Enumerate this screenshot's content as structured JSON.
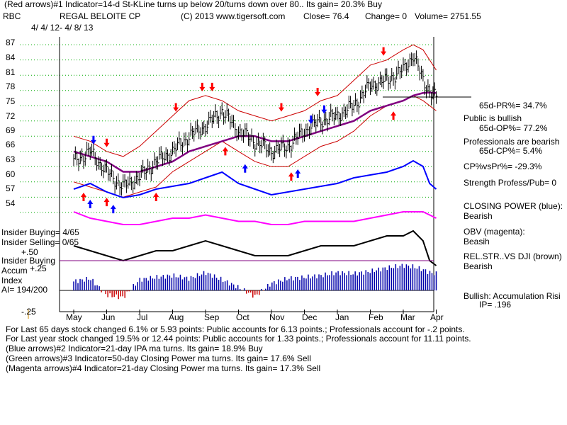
{
  "header": {
    "line1": "(Red arrows)#1 Indicator=14-d St-KLine turns up below 20/turns down over 80.. Its gain= 20.3% Buy",
    "ticker": "RBC",
    "company": "REGAL BELOITE CP",
    "copyright": "(C) 2013 www.tigersoft.com",
    "close": "Close=  76.4",
    "change": "Change= 0",
    "volume": "Volume= 2751.55",
    "date_range": "4/ 4/ 12-  4/ 8/ 13"
  },
  "left_labels": {
    "insider_buying": "Insider Buying= 4/65",
    "insider_selling": "Insider Selling= 0/65",
    "plus50": "+.50",
    "insider_buying2": "Insider Buying",
    "plus25": "+.25",
    "accum": "Accum",
    "index": "Index",
    "ai": "AI= 194/200",
    "minus25": "-.25"
  },
  "right_panel": {
    "pr": "65d-PR%= 34.7%",
    "public_title": "Public is bullish",
    "op": "65d-OP%= 77.2%",
    "prof_title": "Professionals are bearish",
    "cp": "65d-CP%= 5.4%",
    "cpvspr": "CP%vsPr%= -29.3%",
    "strength": "Strength Profess/Pub= 0",
    "closing_power_title": "CLOSING POWER (blue):",
    "closing_power_val": "Bearish",
    "obv_title": "OBV (magenta):",
    "obv_val": "Beasih",
    "relstr_title": "REL.STR..VS DJI (brown)",
    "relstr_val": "Bearish",
    "bullish_title": "Bullish: Accumulation Risi",
    "ip": "IP=  .196"
  },
  "bottom_text": {
    "line1": "For Last 65 days stock changed  6.1% or  5.93 points:  Public accounts for  6.13 points.;  Professionals account for -.2 points.",
    "line2": "For Last year stock changed  19.5% or  12.44 points:  Public accounts for  1.33 points.;  Professionals account for  11.11 points.",
    "line3": "(Blue arrows)#2 Indicator=21-day IPA ma turns. Its gain= 18.9% Buy",
    "line4": "(Green arrows)#3 Indicator=50-day Closing Power ma turns. Its gain= 17.6% Sell",
    "line5": "(Magenta arrows)#4 Indicator=21-day Closing Power ma turns. Its gain= 17.3% Sell"
  },
  "colors": {
    "price_bar": "#000000",
    "upper_band": "#cc0000",
    "ma_purple": "#800080",
    "closing_power": "#0000ff",
    "obv": "#ff00ff",
    "relstr": "#000000",
    "accum": "#0000aa",
    "red_arrow": "#ff0000",
    "blue_arrow": "#0000ff",
    "grid": "#00aa00"
  },
  "chart_data": {
    "type": "line",
    "title": "REGAL BELOITE CP (RBC)",
    "y_ticks": [
      87,
      84,
      81,
      78,
      75,
      72,
      69,
      66,
      63,
      60,
      57,
      54
    ],
    "ylim": [
      52,
      89
    ],
    "x_ticks": [
      "May",
      "Jun",
      "Jul",
      "Aug",
      "Sep",
      "Oct",
      "Nov",
      "Dec",
      "Jan",
      "Feb",
      "Mar",
      "Apr"
    ],
    "price_series": {
      "name": "Close",
      "months": [
        0,
        0.5,
        1,
        1.5,
        2,
        2.5,
        3,
        3.5,
        4,
        4.5,
        5,
        5.5,
        6,
        6.5,
        7,
        7.5,
        8,
        8.5,
        9,
        9.5,
        10,
        10.3,
        10.6,
        10.8,
        11
      ],
      "values": [
        64,
        66,
        62,
        59,
        61,
        64,
        66,
        69,
        71,
        74,
        70,
        68,
        66,
        67,
        70,
        72,
        73,
        75,
        79,
        80,
        82,
        85,
        80,
        78,
        76.4
      ]
    },
    "upper_band": [
      69,
      68,
      66,
      65,
      67,
      70,
      73,
      76,
      77,
      76,
      74,
      73,
      72,
      73,
      74,
      76,
      77,
      80,
      83,
      84,
      86,
      87,
      86,
      84,
      82
    ],
    "lower_band": [
      60,
      59,
      58,
      57,
      58,
      59,
      62,
      64,
      66,
      68,
      66,
      64,
      63,
      63,
      65,
      67,
      68,
      70,
      73,
      75,
      76,
      77,
      76,
      75,
      74
    ],
    "ma_series": [
      66,
      65,
      64,
      62,
      62,
      63,
      64,
      66,
      67,
      68,
      69,
      69,
      68,
      68,
      69,
      70,
      71,
      72,
      74,
      75,
      76,
      77,
      77.5,
      77.6,
      77.5
    ],
    "closing_power": [
      12,
      14,
      11,
      9,
      10,
      12,
      13,
      14,
      16,
      18,
      14,
      12,
      10,
      11,
      12,
      13,
      14,
      16,
      17,
      18,
      20,
      22,
      20,
      14,
      12
    ],
    "obv": [
      8,
      6,
      5,
      4,
      4,
      5,
      6,
      6,
      7,
      6,
      5,
      5,
      4,
      4,
      5,
      5,
      5,
      5,
      6,
      7,
      8,
      8,
      8,
      7,
      6
    ],
    "relstr": [
      5,
      4,
      3,
      2,
      3,
      4,
      4,
      5,
      6,
      5,
      4,
      3,
      3,
      3,
      4,
      5,
      5,
      5,
      6,
      7,
      7,
      8,
      6,
      2,
      1
    ],
    "accum": [
      0.15,
      0.2,
      -0.08,
      -0.12,
      0.18,
      0.22,
      0.25,
      0.2,
      0.3,
      0.18,
      0.05,
      -0.1,
      0.12,
      0.2,
      0.22,
      0.25,
      0.3,
      0.28,
      0.32,
      0.38,
      0.42,
      0.4,
      0.35,
      0.3,
      0.28
    ],
    "accum_ylim": [
      -0.25,
      0.5
    ],
    "red_arrows_down": [
      1,
      3.1,
      3.9,
      4.2,
      6.3,
      7.4,
      9.4
    ],
    "red_arrows_up": [
      0.3,
      1.0,
      2.5,
      4.6,
      6.6,
      9.7
    ],
    "blue_arrows_down": [
      0.6,
      7.2,
      7.6
    ],
    "blue_arrows_up": [
      0.5,
      1.2,
      5.2,
      6.8
    ]
  }
}
